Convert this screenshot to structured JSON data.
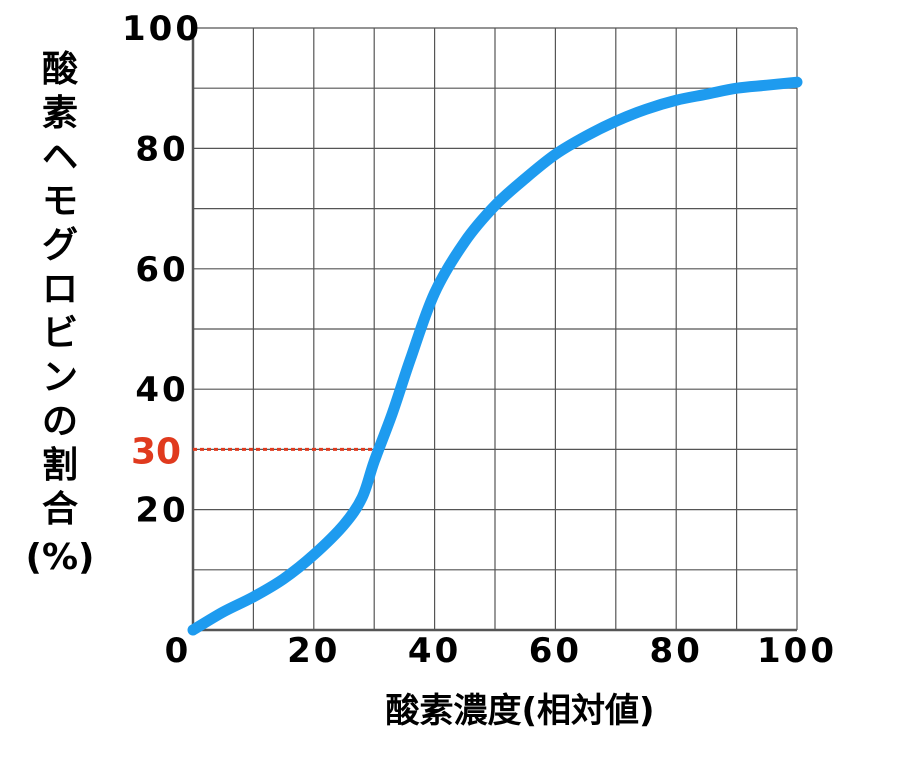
{
  "chart_data": {
    "type": "line",
    "xlabel": "酸素濃度(相対値)",
    "ylabel_chars": [
      "酸",
      "素",
      "ヘ",
      "モ",
      "グ",
      "ロ",
      "ビ",
      "ン",
      "の",
      "割",
      "合"
    ],
    "ylabel_unit": "(%)",
    "xlim": [
      0,
      100
    ],
    "ylim": [
      0,
      100
    ],
    "x_ticks": [
      "0",
      "20",
      "40",
      "60",
      "80",
      "100"
    ],
    "y_ticks": [
      "20",
      "40",
      "60",
      "80",
      "100"
    ],
    "grid": true,
    "series": [
      {
        "color": "#1e9bef",
        "x": [
          0,
          5,
          10,
          15,
          20,
          25,
          28,
          30,
          33,
          36,
          40,
          45,
          50,
          55,
          60,
          65,
          70,
          75,
          80,
          85,
          90,
          95,
          100
        ],
        "y": [
          0,
          3,
          5.5,
          8.5,
          12.5,
          17.5,
          22,
          28,
          36,
          45,
          56,
          64.5,
          70.5,
          75,
          79,
          82,
          84.5,
          86.5,
          88,
          89,
          90,
          90.5,
          91
        ]
      }
    ],
    "annotation": {
      "label": "30",
      "x": 30,
      "y": 30,
      "color": "#e03a1e"
    }
  }
}
